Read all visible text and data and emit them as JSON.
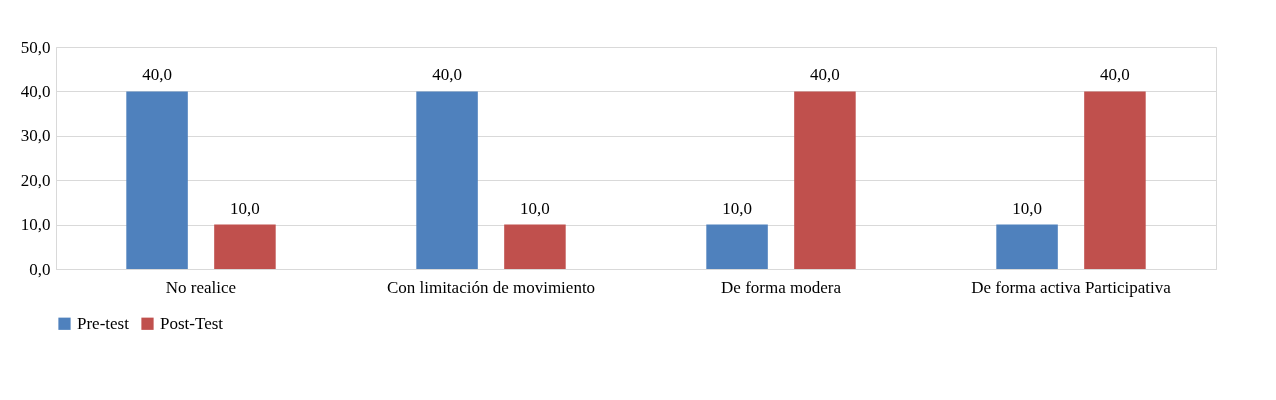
{
  "chart_data": {
    "type": "bar",
    "categories": [
      "No realice",
      "Con limitación de movimiento",
      "De forma modera",
      "De forma activa Participativa"
    ],
    "series": [
      {
        "name": "Pre-test",
        "color": "#4f81bd",
        "values": [
          40,
          40,
          10,
          10
        ],
        "value_labels": [
          "40,0",
          "40,0",
          "10,0",
          "10,0"
        ]
      },
      {
        "name": "Post-Test",
        "color": "#c0504d",
        "values": [
          10,
          10,
          40,
          40
        ],
        "value_labels": [
          "10,0",
          "10,0",
          "40,0",
          "40,0"
        ]
      }
    ],
    "ylim": [
      0,
      50
    ],
    "yticks": [
      {
        "value": 0,
        "label": "0,0"
      },
      {
        "value": 10,
        "label": "10,0"
      },
      {
        "value": 20,
        "label": "20,0"
      },
      {
        "value": 30,
        "label": "30,0"
      },
      {
        "value": 40,
        "label": "40,0"
      },
      {
        "value": 50,
        "label": "50,0"
      }
    ],
    "grid": "y",
    "legend": "bottom"
  }
}
